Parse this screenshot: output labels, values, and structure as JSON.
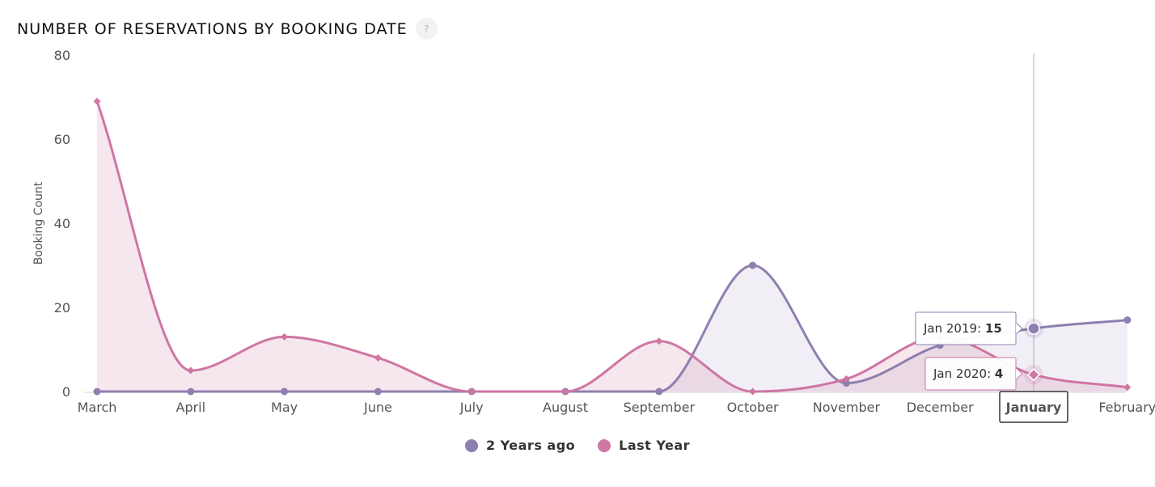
{
  "header": {
    "title": "NUMBER OF RESERVATIONS BY BOOKING DATE",
    "help_glyph": "?"
  },
  "chart_data": {
    "type": "area",
    "ylabel": "Booking Count",
    "xlabel": "",
    "ylim": [
      0,
      80
    ],
    "yticks": [
      0,
      20,
      40,
      60,
      80
    ],
    "grid": false,
    "legend_position": "bottom-center",
    "categories": [
      "March",
      "April",
      "May",
      "June",
      "July",
      "August",
      "September",
      "October",
      "November",
      "December",
      "January",
      "February"
    ],
    "series": [
      {
        "name": "2 Years ago",
        "color": "#8e7fb0",
        "values": [
          0,
          0,
          0,
          0,
          0,
          0,
          0,
          30,
          2,
          11,
          15,
          17
        ]
      },
      {
        "name": "Last Year",
        "color": "#cf76a3",
        "values": [
          69,
          5,
          13,
          8,
          0,
          0,
          12,
          0,
          3,
          13,
          4,
          1
        ]
      }
    ],
    "highlighted_category": "January",
    "tooltips": [
      {
        "label": "Jan 2019",
        "value": "15",
        "series": "2 Years ago"
      },
      {
        "label": "Jan 2020",
        "value": "4",
        "series": "Last Year"
      }
    ]
  },
  "legend": {
    "items": [
      {
        "label": "2 Years ago",
        "color": "#8e7fb0"
      },
      {
        "label": "Last Year",
        "color": "#cf76a3"
      }
    ]
  }
}
